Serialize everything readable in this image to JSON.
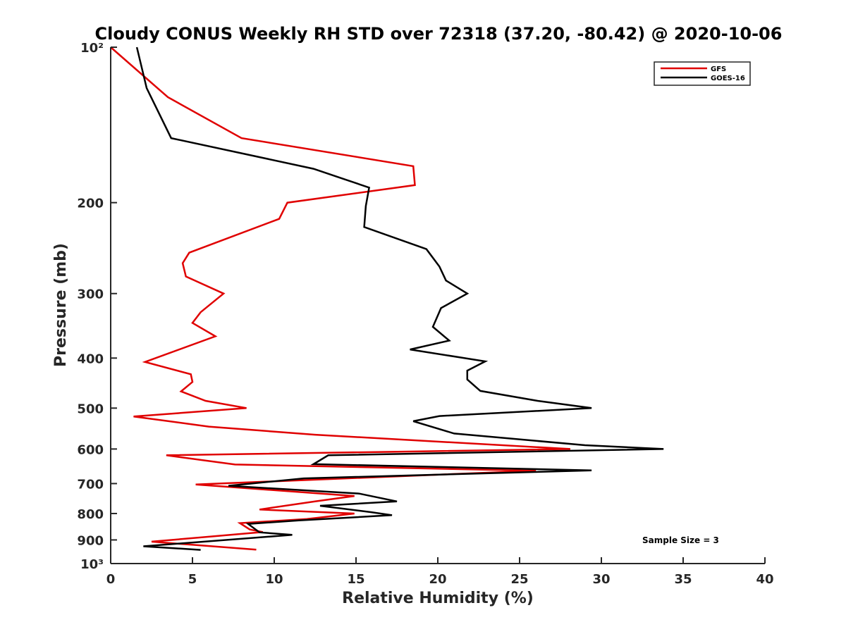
{
  "chart_data": {
    "type": "line",
    "title": "Cloudy CONUS Weekly RH STD over 72318 (37.20, -80.42) @ 2020-10-06",
    "xlabel": "Relative Humidity (%)",
    "ylabel": "Pressure (mb)",
    "xlim": [
      0,
      40
    ],
    "ylim": [
      100,
      1000
    ],
    "yscale": "log",
    "y_reversed": true,
    "x_ticks": [
      0,
      5,
      10,
      15,
      20,
      25,
      30,
      35,
      40
    ],
    "x_tick_labels": [
      "0",
      "5",
      "10",
      "15",
      "20",
      "25",
      "30",
      "35",
      "40"
    ],
    "y_ticks": [
      100,
      200,
      300,
      400,
      500,
      600,
      700,
      800,
      900,
      1000
    ],
    "y_tick_labels": [
      "10²",
      "200",
      "300",
      "400",
      "500",
      "600",
      "700",
      "800",
      "900",
      "10³"
    ],
    "grid": false,
    "legend_position": "top-right",
    "annotation": "Sample Size = 3",
    "series": [
      {
        "name": "GFS",
        "color": "#e00000",
        "points": [
          [
            0.0,
            100
          ],
          [
            3.5,
            125
          ],
          [
            8.0,
            150
          ],
          [
            18.5,
            170
          ],
          [
            18.6,
            185
          ],
          [
            10.8,
            200
          ],
          [
            10.3,
            215
          ],
          [
            4.8,
            250
          ],
          [
            4.4,
            262
          ],
          [
            4.6,
            278
          ],
          [
            6.9,
            300
          ],
          [
            5.5,
            326
          ],
          [
            5.0,
            342
          ],
          [
            6.4,
            363
          ],
          [
            2.1,
            407
          ],
          [
            4.9,
            430
          ],
          [
            5.0,
            445
          ],
          [
            4.3,
            464
          ],
          [
            5.8,
            484
          ],
          [
            8.3,
            500
          ],
          [
            1.4,
            519
          ],
          [
            6.0,
            543
          ],
          [
            12.5,
            563
          ],
          [
            28.1,
            600
          ],
          [
            3.4,
            617
          ],
          [
            7.6,
            643
          ],
          [
            26.0,
            661
          ],
          [
            5.2,
            703
          ],
          [
            14.9,
            740
          ],
          [
            12.5,
            758
          ],
          [
            9.1,
            786
          ],
          [
            14.9,
            800
          ],
          [
            12.0,
            820
          ],
          [
            7.9,
            835
          ],
          [
            8.5,
            859
          ],
          [
            9.3,
            869
          ],
          [
            2.5,
            907
          ],
          [
            8.9,
            940
          ]
        ]
      },
      {
        "name": "GOES-16",
        "color": "#000000",
        "points": [
          [
            1.6,
            100
          ],
          [
            2.2,
            120
          ],
          [
            3.7,
            150
          ],
          [
            12.4,
            172
          ],
          [
            15.8,
            187
          ],
          [
            15.6,
            203
          ],
          [
            15.5,
            223
          ],
          [
            19.3,
            246
          ],
          [
            20.1,
            266
          ],
          [
            20.5,
            283
          ],
          [
            21.8,
            300
          ],
          [
            20.2,
            320
          ],
          [
            19.7,
            348
          ],
          [
            20.7,
            370
          ],
          [
            18.3,
            385
          ],
          [
            22.9,
            406
          ],
          [
            21.8,
            423
          ],
          [
            21.8,
            440
          ],
          [
            22.6,
            463
          ],
          [
            26.1,
            484
          ],
          [
            29.4,
            500
          ],
          [
            20.1,
            518
          ],
          [
            18.5,
            530
          ],
          [
            21.0,
            560
          ],
          [
            29.0,
            590
          ],
          [
            33.8,
            600
          ],
          [
            13.3,
            617
          ],
          [
            12.4,
            642
          ],
          [
            29.4,
            660
          ],
          [
            11.8,
            684
          ],
          [
            7.2,
            707
          ],
          [
            15.2,
            732
          ],
          [
            17.5,
            758
          ],
          [
            12.8,
            773
          ],
          [
            15.9,
            795
          ],
          [
            17.2,
            806
          ],
          [
            11.5,
            825
          ],
          [
            8.4,
            838
          ],
          [
            9.1,
            870
          ],
          [
            11.1,
            880
          ],
          [
            2.0,
            926
          ],
          [
            5.5,
            941
          ]
        ]
      }
    ]
  }
}
